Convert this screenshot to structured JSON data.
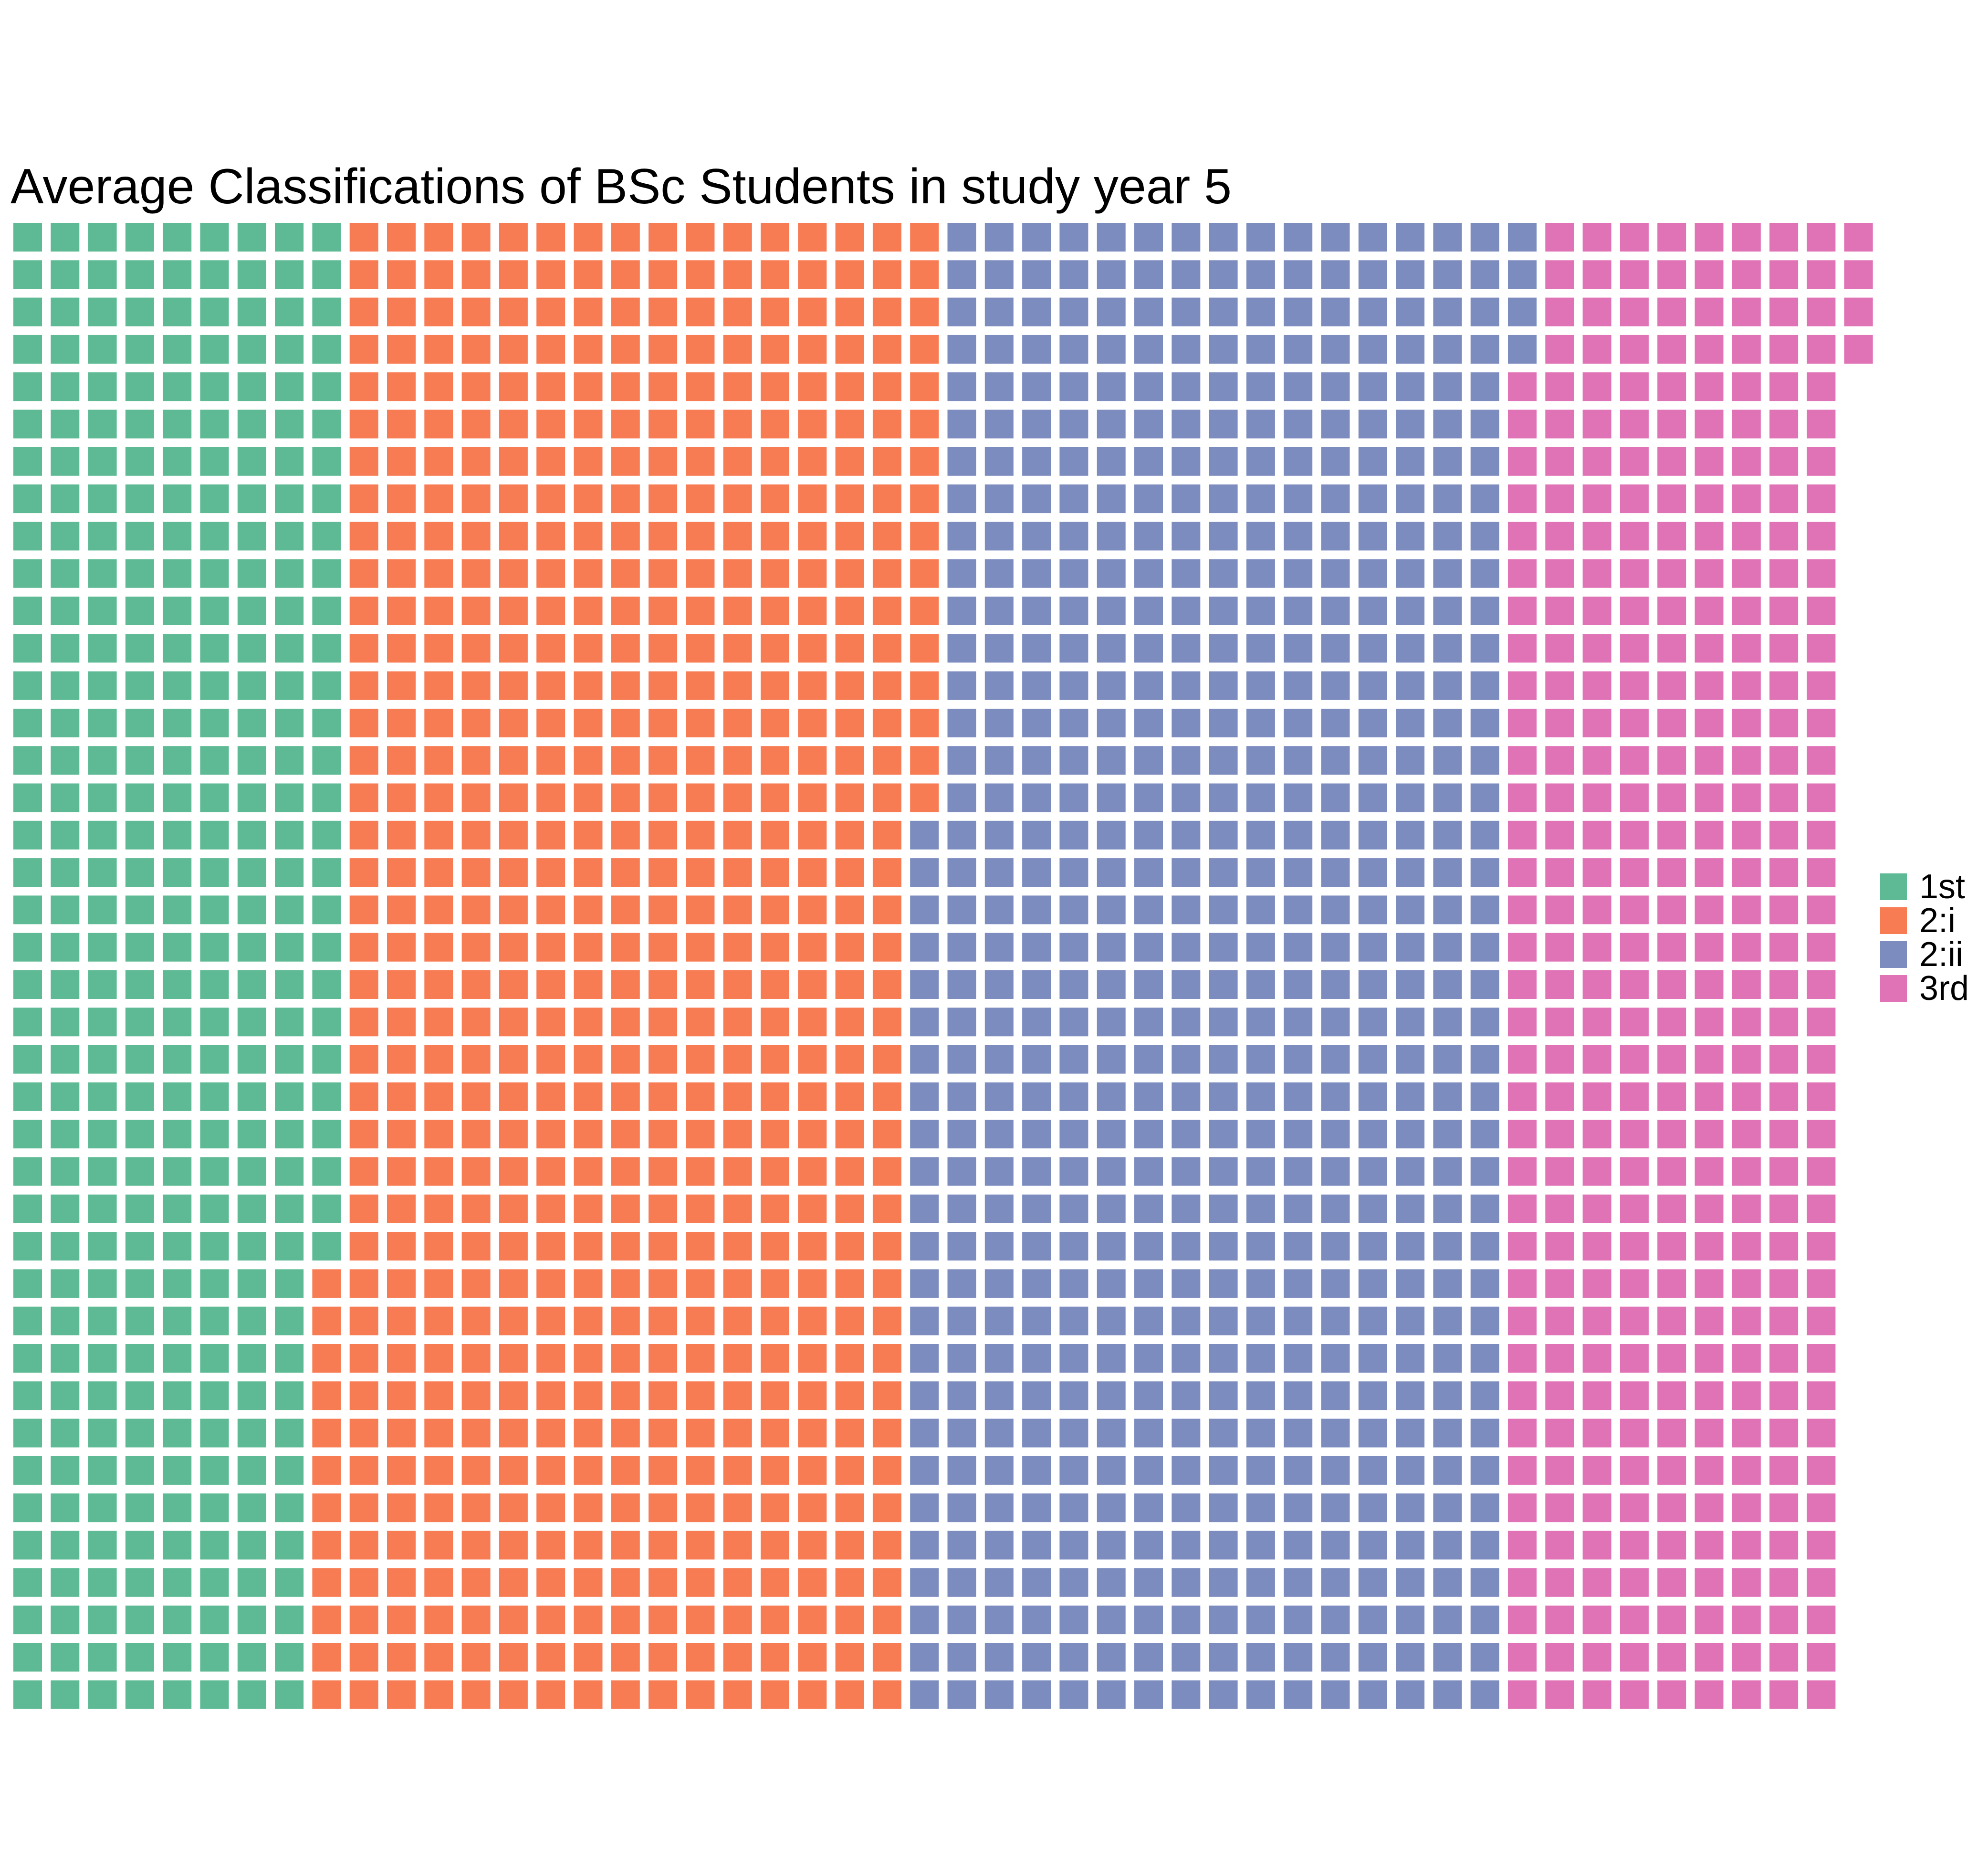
{
  "chart_data": {
    "type": "waffle",
    "title": "Average Classifications of BSc Students in study year 5",
    "xlabel": "",
    "ylabel": "",
    "grid": false,
    "legend_position": "right",
    "fill_order": "column-major, top to bottom, left to right",
    "rows": 40,
    "columns": 49,
    "categories": [
      "1st",
      "2:i",
      "2:ii",
      "3rd"
    ],
    "values": [
      348,
      628,
      628,
      360
    ],
    "colors": [
      "#5dba94",
      "#f77b53",
      "#7d8cbf",
      "#e073b6"
    ]
  }
}
